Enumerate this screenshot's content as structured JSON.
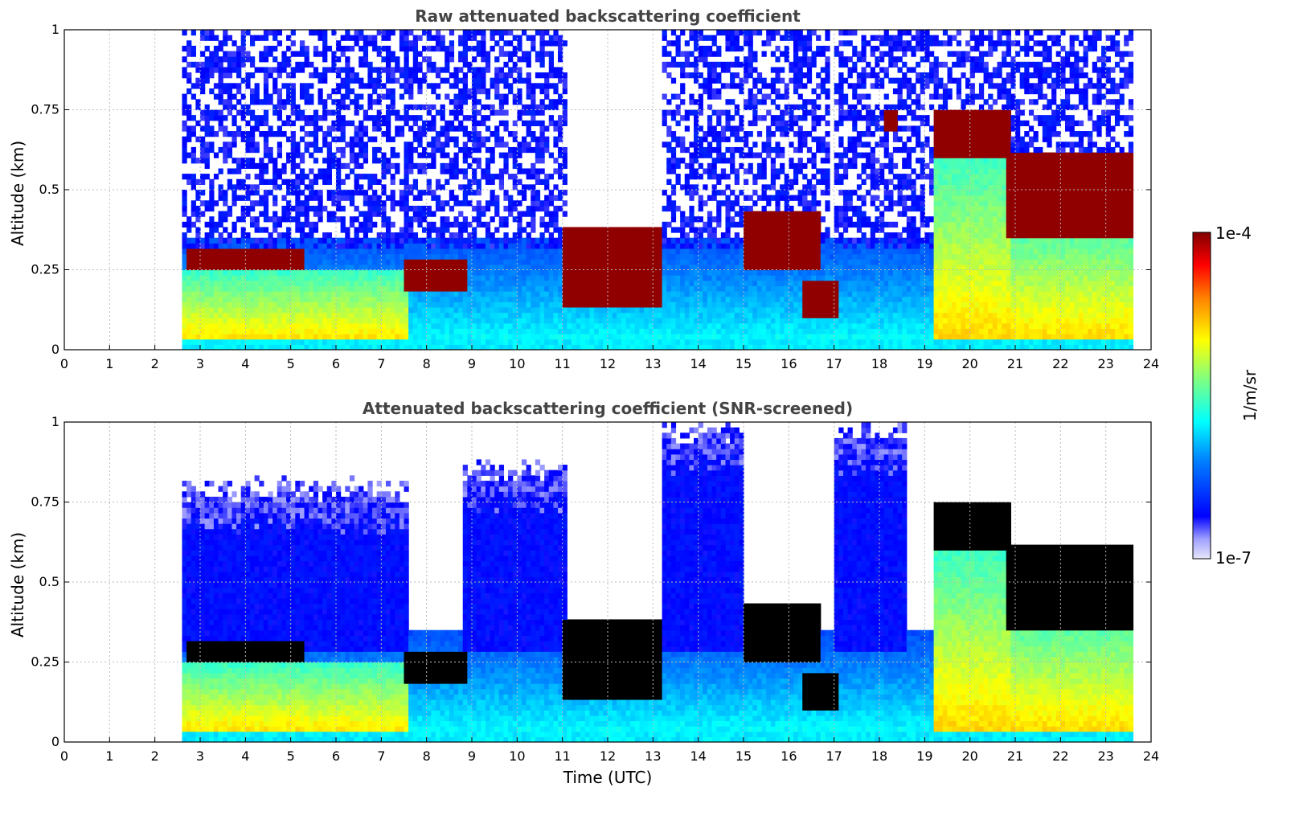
{
  "chart_data": [
    {
      "type": "heatmap",
      "title": "Raw attenuated backscattering coefficient",
      "xlabel": "",
      "ylabel": "Altitude (km)",
      "xlim": [
        0,
        24
      ],
      "ylim": [
        0,
        1
      ],
      "x_ticks": [
        "0",
        "1",
        "2",
        "3",
        "4",
        "5",
        "6",
        "7",
        "8",
        "9",
        "10",
        "11",
        "12",
        "13",
        "14",
        "15",
        "16",
        "17",
        "18",
        "19",
        "20",
        "21",
        "22",
        "23",
        "24"
      ],
      "y_ticks": [
        "0",
        "0.25",
        "0.5",
        "0.75",
        "1"
      ],
      "grid": true,
      "data_start_utc": 2.6,
      "data_end_utc": 23.6,
      "features": [
        {
          "kind": "noise",
          "t0": 2.6,
          "t1": 7.5,
          "top": 1.0
        },
        {
          "kind": "noise",
          "t0": 7.5,
          "t1": 8.8,
          "top": 1.0
        },
        {
          "kind": "noise",
          "t0": 8.8,
          "t1": 11.0,
          "top": 1.0
        },
        {
          "kind": "noise",
          "t0": 13.2,
          "t1": 16.9,
          "top": 1.0
        },
        {
          "kind": "noise",
          "t0": 17.0,
          "t1": 23.6,
          "top": 1.0
        },
        {
          "kind": "cloud",
          "t0": 2.7,
          "t1": 5.3,
          "base": 0.24,
          "top": 0.3
        },
        {
          "kind": "cloud",
          "t0": 7.5,
          "t1": 8.8,
          "base": 0.18,
          "top": 0.28
        },
        {
          "kind": "cloud",
          "t0": 11.0,
          "t1": 13.2,
          "base": 0.12,
          "top": 0.37
        },
        {
          "kind": "cloud",
          "t0": 15.0,
          "t1": 16.7,
          "base": 0.25,
          "top": 0.42
        },
        {
          "kind": "cloud",
          "t0": 16.3,
          "t1": 17.0,
          "base": 0.1,
          "top": 0.2
        },
        {
          "kind": "cloud",
          "t0": 18.1,
          "t1": 18.4,
          "base": 0.68,
          "top": 0.74
        },
        {
          "kind": "cloud",
          "t0": 19.2,
          "t1": 20.8,
          "base": 0.6,
          "top": 0.74
        },
        {
          "kind": "cloud",
          "t0": 20.8,
          "t1": 23.6,
          "base": 0.35,
          "top": 0.6
        },
        {
          "kind": "boundary",
          "t0": 2.6,
          "t1": 7.5,
          "top": 0.24
        },
        {
          "kind": "boundary",
          "t0": 19.2,
          "t1": 20.8,
          "top": 0.6
        },
        {
          "kind": "boundary",
          "t0": 20.8,
          "t1": 23.6,
          "top": 0.4
        }
      ]
    },
    {
      "type": "heatmap",
      "title": "Attenuated backscattering coefficient (SNR-screened)",
      "xlabel": "Time (UTC)",
      "ylabel": "Altitude (km)",
      "xlim": [
        0,
        24
      ],
      "ylim": [
        0,
        1
      ],
      "x_ticks": [
        "0",
        "1",
        "2",
        "3",
        "4",
        "5",
        "6",
        "7",
        "8",
        "9",
        "10",
        "11",
        "12",
        "13",
        "14",
        "15",
        "16",
        "17",
        "18",
        "19",
        "20",
        "21",
        "22",
        "23",
        "24"
      ],
      "y_ticks": [
        "0",
        "0.25",
        "0.5",
        "0.75",
        "1"
      ],
      "grid": true,
      "data_start_utc": 2.6,
      "data_end_utc": 23.6,
      "saturated_color": "#000000",
      "features": [
        {
          "kind": "screened_layer",
          "t0": 2.6,
          "t1": 7.5,
          "top": 0.82
        },
        {
          "kind": "screened_layer",
          "t0": 8.8,
          "t1": 11.0,
          "top": 0.88
        },
        {
          "kind": "screened_layer",
          "t0": 13.2,
          "t1": 14.9,
          "top": 1.0
        },
        {
          "kind": "screened_layer",
          "t0": 17.0,
          "t1": 18.5,
          "top": 1.0
        },
        {
          "kind": "cloud",
          "t0": 2.7,
          "t1": 5.3,
          "base": 0.24,
          "top": 0.3
        },
        {
          "kind": "cloud",
          "t0": 7.5,
          "t1": 8.8,
          "base": 0.18,
          "top": 0.28
        },
        {
          "kind": "cloud",
          "t0": 11.0,
          "t1": 13.2,
          "base": 0.12,
          "top": 0.37
        },
        {
          "kind": "cloud",
          "t0": 15.0,
          "t1": 16.7,
          "base": 0.25,
          "top": 0.42
        },
        {
          "kind": "cloud",
          "t0": 16.3,
          "t1": 17.0,
          "base": 0.1,
          "top": 0.2
        },
        {
          "kind": "cloud",
          "t0": 19.2,
          "t1": 20.8,
          "base": 0.6,
          "top": 0.74
        },
        {
          "kind": "cloud",
          "t0": 20.8,
          "t1": 23.6,
          "base": 0.35,
          "top": 0.6
        },
        {
          "kind": "boundary",
          "t0": 2.6,
          "t1": 7.5,
          "top": 0.24
        },
        {
          "kind": "boundary",
          "t0": 19.2,
          "t1": 20.8,
          "top": 0.6
        },
        {
          "kind": "boundary",
          "t0": 20.8,
          "t1": 23.6,
          "top": 0.4
        }
      ]
    }
  ],
  "colorbar": {
    "min_label": "1e-7",
    "max_label": "1e-4",
    "label": "1/m/sr",
    "colormap": "jet",
    "low_color": "#e6e6fa",
    "high_color": "#800000"
  }
}
